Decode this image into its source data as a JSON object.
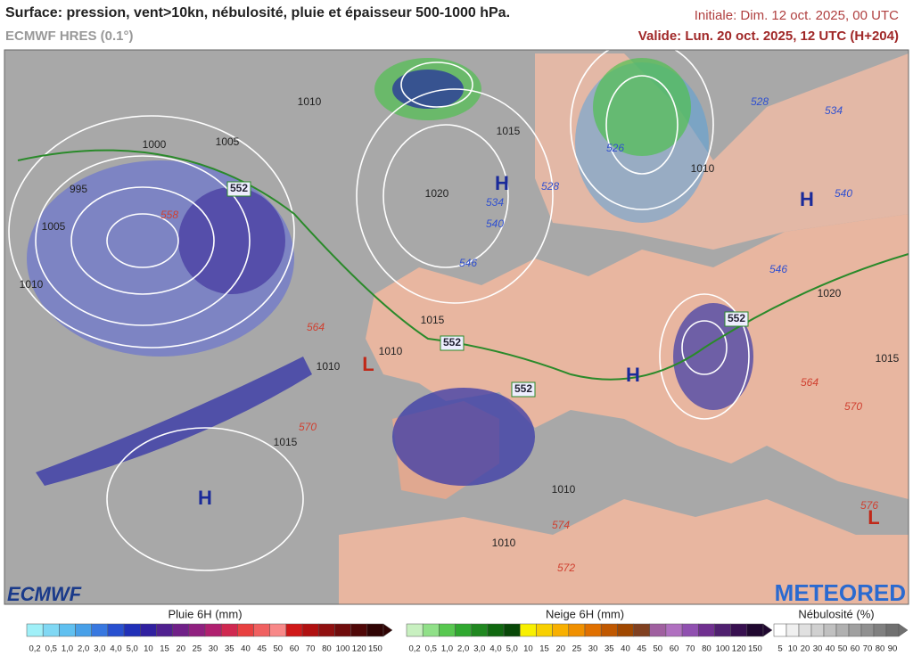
{
  "header": {
    "title": "Surface: pression, vent>10kn, nébulosité, pluie et épaisseur 500-1000 hPa.",
    "model": "ECMWF HRES (0.1°)",
    "initial": "Initiale: Dim. 12 oct. 2025, 00 UTC",
    "valid": "Valide: Lun. 20 oct. 2025, 12 UTC (H+204)"
  },
  "map": {
    "labels": [
      "1010",
      "1000",
      "1005",
      "995",
      "1005",
      "1010",
      "552",
      "558",
      "1020",
      "H",
      "1015",
      "534",
      "540",
      "546",
      "528",
      "526",
      "1010",
      "528",
      "534",
      "540",
      "H",
      "546",
      "1020",
      "1015",
      "564",
      "1010",
      "552",
      "1010",
      "L",
      "552",
      "H",
      "552",
      "1015",
      "564",
      "570",
      "570",
      "1015",
      "H",
      "1010",
      "574",
      "1010",
      "576",
      "L",
      "572"
    ]
  },
  "logos": {
    "left": "ECMWF",
    "right": "METEORED"
  },
  "legends": [
    {
      "title": "Pluie 6H (mm)",
      "labels": [
        "0,2",
        "0,5",
        "1,0",
        "2,0",
        "3,0",
        "4,0",
        "5,0",
        "10",
        "15",
        "20",
        "25",
        "30",
        "35",
        "40",
        "45",
        "50",
        "60",
        "70",
        "80",
        "100",
        "120",
        "150"
      ]
    },
    {
      "title": "Neige 6H (mm)",
      "labels": [
        "0,2",
        "0,5",
        "1,0",
        "2,0",
        "3,0",
        "4,0",
        "5,0",
        "10",
        "15",
        "20",
        "25",
        "30",
        "35",
        "40",
        "45",
        "50",
        "60",
        "70",
        "80",
        "100",
        "120",
        "150"
      ]
    },
    {
      "title": "Nébulosité (%)",
      "labels": [
        "5",
        "10",
        "20",
        "30",
        "40",
        "50",
        "60",
        "70",
        "80",
        "90"
      ]
    }
  ]
}
